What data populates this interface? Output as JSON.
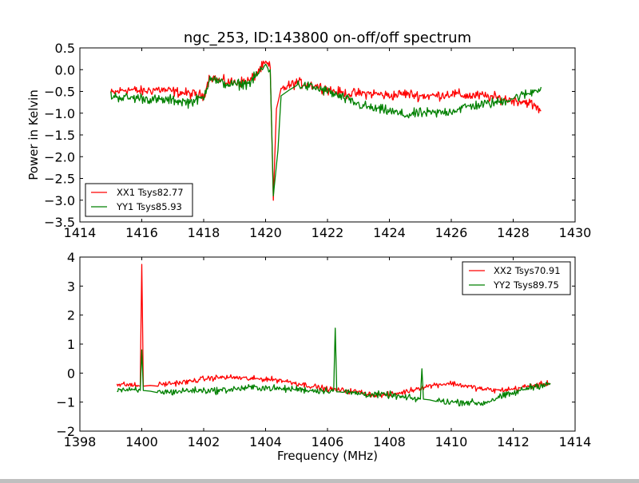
{
  "chart_data": [
    {
      "type": "line",
      "title": "ngc_253, ID:143800 on-off/off spectrum",
      "xlabel": "",
      "ylabel": "Power in Kelvin",
      "xlim": [
        1414,
        1430
      ],
      "ylim": [
        -3.5,
        0.5
      ],
      "xticks": [
        "1414",
        "1416",
        "1418",
        "1420",
        "1422",
        "1424",
        "1426",
        "1428",
        "1430"
      ],
      "xtick_values": [
        1414,
        1416,
        1418,
        1420,
        1422,
        1424,
        1426,
        1428,
        1430
      ],
      "yticks": [
        "0.5",
        "0.0",
        "−0.5",
        "−1.0",
        "−1.5",
        "−2.0",
        "−2.5",
        "−3.0",
        "−3.5"
      ],
      "ytick_values": [
        0.5,
        0.0,
        -0.5,
        -1.0,
        -1.5,
        -2.0,
        -2.5,
        -3.0,
        -3.5
      ],
      "grid": false,
      "legend_position": "lower-left",
      "series": [
        {
          "name": "XX1 Tsys82.77",
          "color": "#ff0000",
          "x": [
            1415.0,
            1415.5,
            1416.0,
            1416.5,
            1417.0,
            1417.5,
            1418.0,
            1418.2,
            1418.5,
            1419.0,
            1419.5,
            1420.0,
            1420.15,
            1420.25,
            1420.35,
            1420.5,
            1421.0,
            1421.5,
            1422.0,
            1422.5,
            1423.0,
            1423.5,
            1424.0,
            1424.5,
            1425.0,
            1425.5,
            1426.0,
            1426.5,
            1427.0,
            1427.5,
            1428.0,
            1428.5,
            1428.9
          ],
          "y": [
            -0.55,
            -0.45,
            -0.5,
            -0.45,
            -0.5,
            -0.55,
            -0.6,
            -0.15,
            -0.25,
            -0.3,
            -0.25,
            0.15,
            0.05,
            -3.0,
            -0.9,
            -0.45,
            -0.3,
            -0.35,
            -0.45,
            -0.55,
            -0.55,
            -0.55,
            -0.6,
            -0.55,
            -0.6,
            -0.6,
            -0.55,
            -0.6,
            -0.6,
            -0.65,
            -0.7,
            -0.75,
            -0.95
          ],
          "noise": 0.1
        },
        {
          "name": "YY1 Tsys85.93",
          "color": "#008000",
          "x": [
            1415.0,
            1415.5,
            1416.0,
            1416.5,
            1417.0,
            1417.5,
            1418.0,
            1418.2,
            1418.5,
            1419.0,
            1419.5,
            1420.0,
            1420.15,
            1420.25,
            1420.4,
            1420.5,
            1421.0,
            1421.5,
            1422.0,
            1422.5,
            1423.0,
            1423.5,
            1424.0,
            1424.5,
            1425.0,
            1425.5,
            1426.0,
            1426.5,
            1427.0,
            1427.5,
            1428.0,
            1428.5,
            1428.9
          ],
          "y": [
            -0.6,
            -0.65,
            -0.65,
            -0.7,
            -0.7,
            -0.75,
            -0.65,
            -0.15,
            -0.3,
            -0.35,
            -0.3,
            0.1,
            0.0,
            -2.9,
            -1.85,
            -0.6,
            -0.35,
            -0.4,
            -0.5,
            -0.65,
            -0.8,
            -0.9,
            -0.95,
            -1.05,
            -1.0,
            -1.0,
            -0.95,
            -0.85,
            -0.8,
            -0.75,
            -0.65,
            -0.55,
            -0.4
          ],
          "noise": 0.1
        }
      ]
    },
    {
      "type": "line",
      "title": "",
      "xlabel": "Frequency (MHz)",
      "ylabel": "",
      "xlim": [
        1398,
        1414
      ],
      "ylim": [
        -2,
        4
      ],
      "xticks": [
        "1398",
        "1400",
        "1402",
        "1404",
        "1406",
        "1408",
        "1410",
        "1412",
        "1414"
      ],
      "xtick_values": [
        1398,
        1400,
        1402,
        1404,
        1406,
        1408,
        1410,
        1412,
        1414
      ],
      "yticks": [
        "4",
        "3",
        "2",
        "1",
        "0",
        "−1",
        "−2"
      ],
      "ytick_values": [
        4,
        3,
        2,
        1,
        0,
        -1,
        -2
      ],
      "grid": false,
      "legend_position": "upper-right",
      "series": [
        {
          "name": "XX2 Tsys70.91",
          "color": "#ff0000",
          "x": [
            1399.2,
            1399.6,
            1399.95,
            1400.0,
            1400.05,
            1400.5,
            1401.0,
            1401.5,
            1402.0,
            1402.5,
            1403.0,
            1403.5,
            1404.0,
            1404.5,
            1405.0,
            1405.5,
            1406.0,
            1406.5,
            1407.0,
            1407.5,
            1408.0,
            1408.5,
            1409.0,
            1409.5,
            1410.0,
            1410.5,
            1411.0,
            1411.5,
            1412.0,
            1412.5,
            1413.2
          ],
          "y": [
            -0.4,
            -0.4,
            -0.45,
            3.75,
            -0.45,
            -0.4,
            -0.35,
            -0.3,
            -0.2,
            -0.15,
            -0.15,
            -0.2,
            -0.2,
            -0.25,
            -0.35,
            -0.45,
            -0.55,
            -0.6,
            -0.65,
            -0.75,
            -0.75,
            -0.65,
            -0.5,
            -0.4,
            -0.35,
            -0.45,
            -0.55,
            -0.6,
            -0.55,
            -0.45,
            -0.35
          ],
          "noise": 0.08
        },
        {
          "name": "YY2 Tsys89.75",
          "color": "#008000",
          "x": [
            1399.2,
            1399.6,
            1399.95,
            1400.0,
            1400.05,
            1400.5,
            1401.0,
            1401.5,
            1402.0,
            1402.5,
            1403.0,
            1403.5,
            1404.0,
            1404.5,
            1405.0,
            1405.5,
            1406.0,
            1406.2,
            1406.25,
            1406.3,
            1406.5,
            1407.0,
            1407.5,
            1408.0,
            1408.5,
            1409.0,
            1409.05,
            1409.1,
            1409.5,
            1410.0,
            1410.5,
            1411.0,
            1411.5,
            1412.0,
            1412.5,
            1413.2
          ],
          "y": [
            -0.55,
            -0.6,
            -0.6,
            0.8,
            -0.6,
            -0.65,
            -0.65,
            -0.6,
            -0.6,
            -0.6,
            -0.55,
            -0.5,
            -0.5,
            -0.55,
            -0.55,
            -0.6,
            -0.6,
            -0.6,
            1.55,
            -0.65,
            -0.65,
            -0.7,
            -0.75,
            -0.75,
            -0.85,
            -0.9,
            0.15,
            -0.9,
            -0.95,
            -1.0,
            -1.0,
            -1.05,
            -0.85,
            -0.7,
            -0.5,
            -0.35
          ],
          "noise": 0.1
        }
      ]
    }
  ]
}
